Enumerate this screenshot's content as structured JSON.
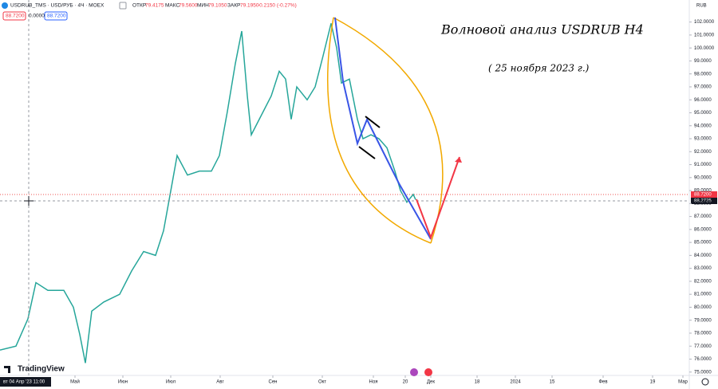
{
  "header": {
    "symbol": "USDRUB_TMS · USD/РУБ · 4Ч · MOEX",
    "open_label": "ОТКР",
    "open": "79.4175",
    "high_label": "МАКС",
    "high": "79.5600",
    "low_label": "МИН",
    "low": "79.1050",
    "close_label": "ЗАКР",
    "close": "79.1950",
    "change": "-0.2150 (-0.27%)",
    "bid": "88.7200",
    "spread": "0.0000",
    "ask": "88.7200"
  },
  "price_tags": [
    "88.7200",
    "88.2725"
  ],
  "currency": "RUB",
  "crosshair_label": "вт 04 Апр '23  11:00",
  "logo": "TradingView",
  "chart_data": {
    "type": "line",
    "title": "Волновой анализ USDRUB H4",
    "subtitle": "( 25 ноября 2023 г.)",
    "color": "#26a69a",
    "x": [
      -17,
      -7,
      0.5,
      5.5,
      13,
      23,
      29,
      33,
      36.5,
      40.5,
      48,
      58,
      65.5,
      73,
      80.5,
      85.5,
      90.5,
      94,
      100.5,
      108,
      115.5,
      120.5,
      125.5,
      130.5,
      134.5,
      138,
      140.5,
      145.5,
      153,
      158,
      162,
      165.5,
      169,
      175.5,
      180.5,
      185.5,
      190.5,
      194,
      197,
      202,
      207,
      210.5,
      215.5,
      220.5,
      225.5,
      230.5,
      234,
      238,
      242,
      243.5
    ],
    "values": [
      76.7,
      77.0,
      79.1,
      81.9,
      81.3,
      81.3,
      80.0,
      77.9,
      75.7,
      79.7,
      80.4,
      81.0,
      82.8,
      84.3,
      84.0,
      85.9,
      89.3,
      91.7,
      90.2,
      90.5,
      90.5,
      91.7,
      95.1,
      98.8,
      101.3,
      96.3,
      93.3,
      94.5,
      96.3,
      98.2,
      97.6,
      94.5,
      97.0,
      96.0,
      97.0,
      99.4,
      101.9,
      100.0,
      97.3,
      97.6,
      94.5,
      93.0,
      93.3,
      93.0,
      92.3,
      90.5,
      89.0,
      88.1,
      88.7,
      88.3
    ],
    "xlim": [
      -17,
      415
    ],
    "xticks": [
      {
        "value": 30,
        "label": "Май"
      },
      {
        "value": 60,
        "label": "Июн"
      },
      {
        "value": 90,
        "label": "Июл"
      },
      {
        "value": 121,
        "label": "Авг"
      },
      {
        "value": 154,
        "label": "Сен"
      },
      {
        "value": 185,
        "label": "Окт"
      },
      {
        "value": 217,
        "label": "Ноя"
      },
      {
        "value": 237,
        "label": "20"
      },
      {
        "value": 253,
        "label": "Дек"
      },
      {
        "value": 282,
        "label": "18"
      },
      {
        "value": 306,
        "label": "2024"
      },
      {
        "value": 329,
        "label": "15"
      },
      {
        "value": 361,
        "label": "Фев"
      },
      {
        "value": 392,
        "label": "19"
      },
      {
        "value": 411,
        "label": "Мар"
      }
    ],
    "ylim": [
      74.8,
      103.7
    ],
    "yticks": [
      {
        "value": 75,
        "label": "75.0000"
      },
      {
        "value": 76,
        "label": "76.0000"
      },
      {
        "value": 77,
        "label": "77.0000"
      },
      {
        "value": 78,
        "label": "78.0000"
      },
      {
        "value": 79,
        "label": "79.0000"
      },
      {
        "value": 80,
        "label": "80.0000"
      },
      {
        "value": 81,
        "label": "81.0000"
      },
      {
        "value": 82,
        "label": "82.0000"
      },
      {
        "value": 83,
        "label": "83.0000"
      },
      {
        "value": 84,
        "label": "84.0000"
      },
      {
        "value": 85,
        "label": "85.0000"
      },
      {
        "value": 86,
        "label": "86.0000"
      },
      {
        "value": 87,
        "label": "87.0000"
      },
      {
        "value": 88,
        "label": "88.0000"
      },
      {
        "value": 89,
        "label": "89.0000"
      },
      {
        "value": 90,
        "label": "90.0000"
      },
      {
        "value": 91,
        "label": "91.0000"
      },
      {
        "value": 92,
        "label": "92.0000"
      },
      {
        "value": 93,
        "label": "93.0000"
      },
      {
        "value": 94,
        "label": "94.0000"
      },
      {
        "value": 95,
        "label": "95.0000"
      },
      {
        "value": 96,
        "label": "96.0000"
      },
      {
        "value": 97,
        "label": "97.0000"
      },
      {
        "value": 98,
        "label": "98.0000"
      },
      {
        "value": 99,
        "label": "99.0000"
      },
      {
        "value": 100,
        "label": "100.0000"
      },
      {
        "value": 101,
        "label": "101.0000"
      },
      {
        "value": 102,
        "label": "102.0000"
      }
    ],
    "grid": false
  }
}
